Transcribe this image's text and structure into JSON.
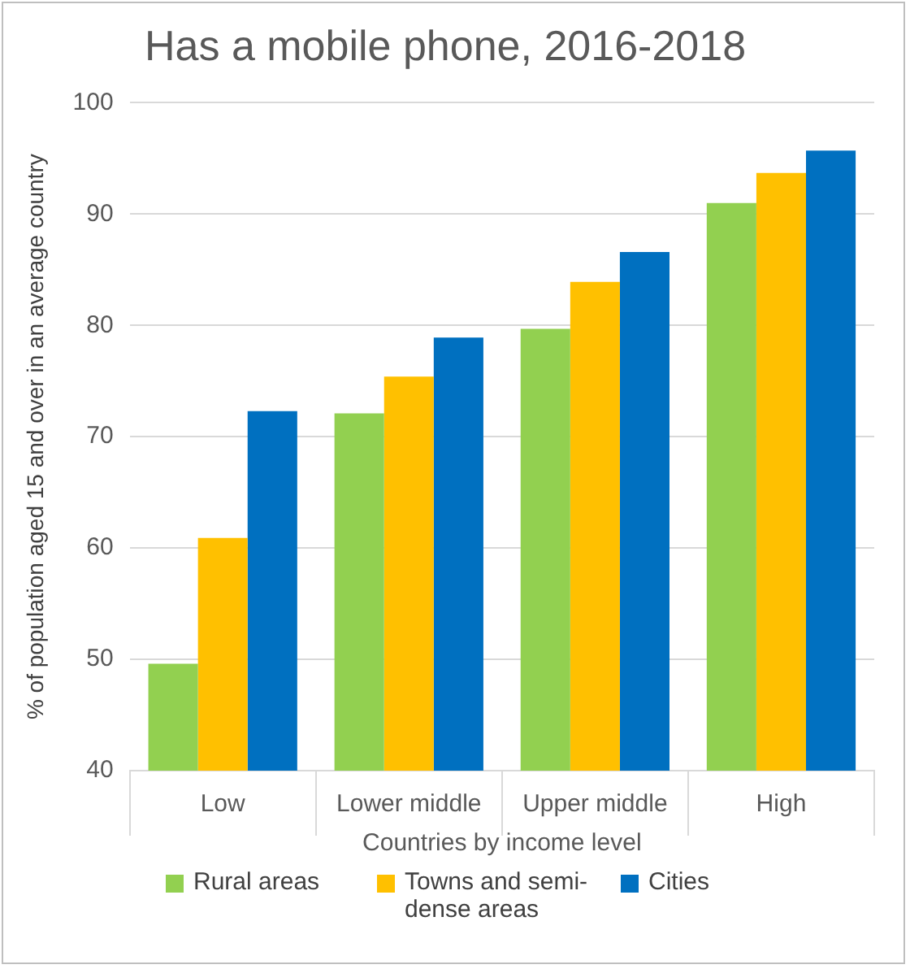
{
  "chart_data": {
    "type": "bar",
    "title": "Has a mobile phone, 2016-2018",
    "xlabel": "Countries by income level",
    "ylabel": "% of population aged 15 and over in an average country",
    "categories": [
      "Low",
      "Lower middle",
      "Upper middle",
      "High"
    ],
    "series": [
      {
        "name": "Rural areas",
        "color": "#92d050",
        "values": [
          49.6,
          72.1,
          79.7,
          91.0
        ]
      },
      {
        "name": "Towns and semi-dense areas",
        "color": "#ffc000",
        "values": [
          60.9,
          75.4,
          83.9,
          93.7
        ]
      },
      {
        "name": "Cities",
        "color": "#0070c0",
        "values": [
          72.3,
          78.9,
          86.6,
          95.7
        ]
      }
    ],
    "ylim": [
      40,
      100
    ],
    "yticks": [
      40,
      50,
      60,
      70,
      80,
      90,
      100
    ],
    "grid": "y",
    "legend": "bottom"
  }
}
